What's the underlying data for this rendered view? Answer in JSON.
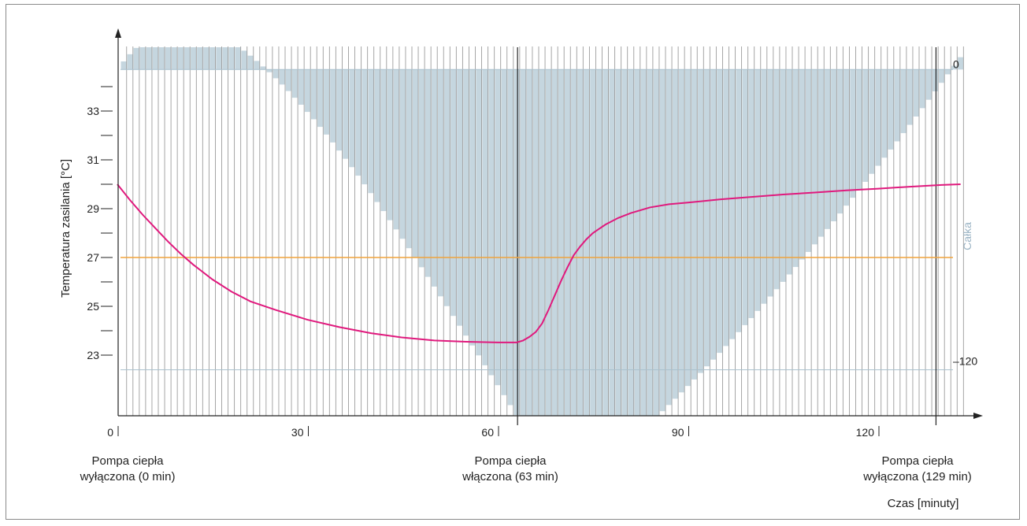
{
  "chart_data": {
    "type": "line",
    "xlabel": "Czas [minuty]",
    "ylabel": "Temperatura zasilania [°C]",
    "y2label": "Całka",
    "xlim": [
      0,
      137
    ],
    "ylim": [
      20.8,
      38.9
    ],
    "x_ticks": [
      0,
      30,
      60,
      90,
      120
    ],
    "x_tick_labels": [
      "0",
      "30",
      "60",
      "90",
      "120"
    ],
    "y_ticks": [
      23,
      25,
      27,
      29,
      31,
      33
    ],
    "y_tick_labels": [
      "23",
      "25",
      "27",
      "29",
      "31",
      "33"
    ],
    "y_minor_ticks": [
      24,
      26,
      28,
      30,
      32,
      34
    ],
    "y2_ticks": [
      0,
      -120
    ],
    "y2_tick_labels": [
      "0",
      "–120"
    ],
    "setpoint": 27,
    "integral_zero_temp": 34.7,
    "integral_min120_temp": 22.4,
    "grid": "vertical bars each minute",
    "series": [
      {
        "name": "",
        "color": "#e0197d",
        "x": [
          0,
          2,
          4,
          6,
          8,
          10,
          12,
          15,
          18,
          21,
          25,
          30,
          35,
          40,
          45,
          50,
          55,
          60,
          62,
          63,
          64,
          65,
          66,
          67,
          68,
          69,
          70,
          71,
          72,
          73,
          74,
          75,
          77,
          79,
          81,
          84,
          87,
          90,
          95,
          100,
          105,
          110,
          115,
          120,
          125,
          130,
          133
        ],
        "y": [
          30.0,
          29.35,
          28.75,
          28.2,
          27.65,
          27.15,
          26.7,
          26.1,
          25.6,
          25.2,
          24.85,
          24.45,
          24.15,
          23.9,
          23.72,
          23.6,
          23.55,
          23.52,
          23.52,
          23.52,
          23.6,
          23.75,
          23.95,
          24.3,
          24.85,
          25.45,
          26.05,
          26.6,
          27.1,
          27.45,
          27.75,
          28.0,
          28.35,
          28.62,
          28.82,
          29.05,
          29.18,
          29.25,
          29.38,
          29.48,
          29.58,
          29.66,
          29.75,
          29.82,
          29.9,
          29.97,
          30.0
        ]
      },
      {
        "name": "",
        "color": "#f0a33c",
        "x": [
          0,
          137
        ],
        "y": [
          27,
          27
        ]
      }
    ],
    "integral_bars": {
      "color": "#c5d6df",
      "minutes": [
        1,
        133
      ],
      "values_min_to_max": "area between 27°C setpoint and supply temperature, accumulated per minute; min ≈ -160 at ~72 min"
    },
    "annotations": [
      {
        "x": 0,
        "text": "Pompa ciepła\nwyłączona (0 min)"
      },
      {
        "x": 63,
        "text": "Pompa ciepła\nwłączona (63 min)"
      },
      {
        "x": 129,
        "text": "Pompa ciepła\nwyłączona (129 min)"
      }
    ]
  }
}
